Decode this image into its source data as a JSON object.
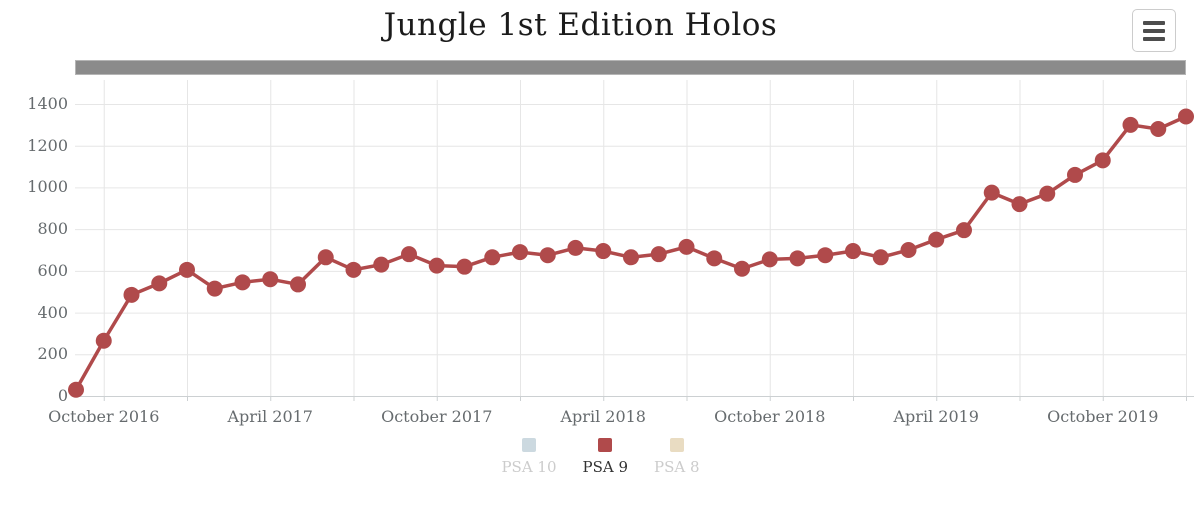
{
  "header": {
    "title": "Jungle 1st Edition Holos"
  },
  "toolbar": {
    "export_menu_icon": "hamburger-icon"
  },
  "navigator": {
    "type": "scrollbar",
    "color": "#8b8b8b"
  },
  "legend": {
    "position": "bottom",
    "items": [
      {
        "label": "PSA 10",
        "color": "#ccd9e0",
        "active": false
      },
      {
        "label": "PSA 9",
        "color": "#b04a4b",
        "active": true
      },
      {
        "label": "PSA 8",
        "color": "#e9dcc2",
        "active": false
      }
    ]
  },
  "chart_data": {
    "type": "line",
    "title": "Jungle 1st Edition Holos",
    "xlabel": "",
    "ylabel": "",
    "grid": true,
    "legend_position": "bottom",
    "ylim": [
      0,
      1400
    ],
    "ytick_interval": 200,
    "ytick_values": [
      0,
      200,
      400,
      600,
      800,
      1000,
      1200,
      1400
    ],
    "xtick_labels": [
      "October 2016",
      "April 2017",
      "October 2017",
      "April 2018",
      "October 2018",
      "April 2019",
      "October 2019"
    ],
    "xtick_indices": [
      1,
      7,
      13,
      19,
      25,
      31,
      37
    ],
    "vgrid_index_step": 3,
    "series": [
      {
        "name": "PSA 9",
        "color": "#b04a4b",
        "x": [
          "Sep 2016",
          "Oct 2016",
          "Nov 2016",
          "Dec 2016",
          "Jan 2017",
          "Feb 2017",
          "Mar 2017",
          "Apr 2017",
          "May 2017",
          "Jun 2017",
          "Jul 2017",
          "Aug 2017",
          "Sep 2017",
          "Oct 2017",
          "Nov 2017",
          "Dec 2017",
          "Jan 2018",
          "Feb 2018",
          "Mar 2018",
          "Apr 2018",
          "May 2018",
          "Jun 2018",
          "Jul 2018",
          "Aug 2018",
          "Sep 2018",
          "Oct 2018",
          "Nov 2018",
          "Dec 2018",
          "Jan 2019",
          "Feb 2019",
          "Mar 2019",
          "Apr 2019",
          "May 2019",
          "Jun 2019",
          "Jul 2019",
          "Aug 2019",
          "Sep 2019",
          "Oct 2019",
          "Nov 2019",
          "Dec 2019",
          "Jan 2020"
        ],
        "values": [
          30,
          265,
          485,
          540,
          605,
          515,
          545,
          560,
          535,
          665,
          605,
          630,
          680,
          625,
          620,
          665,
          690,
          675,
          710,
          695,
          665,
          680,
          715,
          660,
          610,
          655,
          660,
          675,
          695,
          665,
          700,
          750,
          795,
          975,
          920,
          970,
          1060,
          1130,
          1300,
          1280,
          1340
        ]
      }
    ]
  },
  "colors": {
    "grid": "#e6e6e6",
    "axis_line": "#ccd0d2",
    "axis_label": "#666b6e",
    "title": "#1b1b1b",
    "scrollbar": "#8b8b8b",
    "series_psa9": "#b04a4b"
  }
}
